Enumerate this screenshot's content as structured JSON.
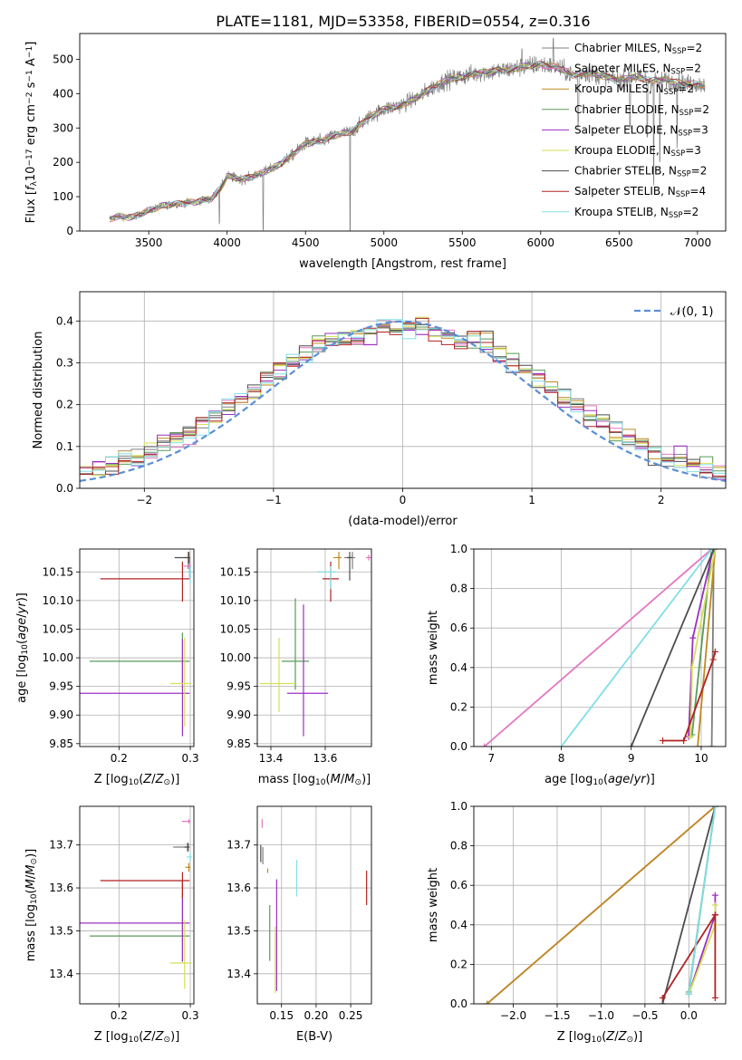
{
  "figure_title": "PLATE=1181, MJD=53358, FIBERID=0554, z=0.316",
  "models": [
    {
      "name": "Chabrier MILES",
      "nssp": "2",
      "color": "#7f7f7f"
    },
    {
      "name": "Salpeter MILES",
      "nssp": "2",
      "color": "#e377c2"
    },
    {
      "name": "Kroupa MILES",
      "nssp": "2",
      "color": "#bd8a1e"
    },
    {
      "name": "Chabrier ELODIE",
      "nssp": "2",
      "color": "#5a9a5a"
    },
    {
      "name": "Salpeter ELODIE",
      "nssp": "3",
      "color": "#9b30c4"
    },
    {
      "name": "Kroupa ELODIE",
      "nssp": "3",
      "color": "#d4e157"
    },
    {
      "name": "Chabrier STELIB",
      "nssp": "2",
      "color": "#4d4d4d"
    },
    {
      "name": "Salpeter STELIB",
      "nssp": "4",
      "color": "#b22222"
    },
    {
      "name": "Kroupa STELIB",
      "nssp": "2",
      "color": "#80dfe6"
    }
  ],
  "chart_data": [
    {
      "id": "spectrum",
      "type": "line",
      "xlabel": "wavelength [Angstrom, rest frame]",
      "ylabel": "Flux [f_λ10^-17 erg cm^-2 s^-1 A^-1]",
      "xlim": [
        3060,
        7180
      ],
      "ylim": [
        0,
        575
      ],
      "xticks": [
        3500,
        4000,
        4500,
        5000,
        5500,
        6000,
        6500,
        7000
      ],
      "yticks": [
        0,
        100,
        200,
        300,
        400,
        500
      ],
      "grid": false,
      "legend": "upper right",
      "continuum_points": [
        [
          3240,
          0
        ],
        [
          3250,
          35
        ],
        [
          3300,
          42
        ],
        [
          3400,
          40
        ],
        [
          3500,
          60
        ],
        [
          3600,
          75
        ],
        [
          3700,
          80
        ],
        [
          3800,
          85
        ],
        [
          3900,
          95
        ],
        [
          3960,
          125
        ],
        [
          4000,
          160
        ],
        [
          4100,
          150
        ],
        [
          4200,
          165
        ],
        [
          4300,
          185
        ],
        [
          4400,
          215
        ],
        [
          4500,
          255
        ],
        [
          4600,
          262
        ],
        [
          4700,
          280
        ],
        [
          4800,
          290
        ],
        [
          4900,
          330
        ],
        [
          5000,
          355
        ],
        [
          5100,
          365
        ],
        [
          5200,
          385
        ],
        [
          5300,
          415
        ],
        [
          5400,
          440
        ],
        [
          5500,
          450
        ],
        [
          5600,
          460
        ],
        [
          5700,
          465
        ],
        [
          5800,
          470
        ],
        [
          5900,
          480
        ],
        [
          6000,
          485
        ],
        [
          6100,
          478
        ],
        [
          6200,
          455
        ],
        [
          6300,
          460
        ],
        [
          6400,
          450
        ],
        [
          6500,
          440
        ],
        [
          6600,
          450
        ],
        [
          6700,
          438
        ],
        [
          6800,
          440
        ],
        [
          6900,
          430
        ],
        [
          7000,
          428
        ],
        [
          7050,
          425
        ]
      ]
    },
    {
      "id": "residuals",
      "type": "line",
      "xlabel": "(data-model)/error",
      "ylabel": "Normed distribution",
      "xlim": [
        -2.5,
        2.5
      ],
      "ylim": [
        0,
        0.47
      ],
      "xticks": [
        -2,
        -1,
        0,
        1,
        2
      ],
      "yticks": [
        0.0,
        0.1,
        0.2,
        0.3,
        0.4
      ],
      "grid": true,
      "legend": "upper right",
      "reference_label": "𝒩(0, 1)",
      "reference_color": "#5b8fd6"
    },
    {
      "id": "age_vs_Z",
      "type": "scatter",
      "xlabel": "Z [log10(Z/Z⊙)]",
      "ylabel": "age [log10(age/yr)]",
      "xlim": [
        0.145,
        0.305
      ],
      "ylim": [
        9.845,
        10.19
      ],
      "xticks": [
        0.2,
        0.3
      ],
      "yticks": [
        9.85,
        9.9,
        9.95,
        10.0,
        10.05,
        10.1,
        10.15
      ],
      "grid": true,
      "points": [
        {
          "model": 0,
          "x": 0.297,
          "y": 10.175,
          "xerr": [
            0.005,
            0.002
          ],
          "yerr": [
            0.02,
            0.01
          ]
        },
        {
          "model": 1,
          "x": 0.299,
          "y": 10.16,
          "xerr": [
            0.008,
            0.002
          ],
          "yerr": [
            0.02,
            0.015
          ]
        },
        {
          "model": 2,
          "x": 0.298,
          "y": 10.175,
          "xerr": [
            0.005,
            0.002
          ],
          "yerr": [
            0.01,
            0.01
          ]
        },
        {
          "model": 3,
          "x": 0.289,
          "y": 9.994,
          "xerr": [
            0.13,
            0.01
          ],
          "yerr": [
            0.04,
            0.05
          ]
        },
        {
          "model": 4,
          "x": 0.289,
          "y": 9.938,
          "xerr": [
            0.15,
            0.01
          ],
          "yerr": [
            0.075,
            0.095
          ]
        },
        {
          "model": 5,
          "x": 0.292,
          "y": 9.955,
          "xerr": [
            0.02,
            0.01
          ],
          "yerr": [
            0.075,
            0.08
          ]
        },
        {
          "model": 6,
          "x": 0.298,
          "y": 10.175,
          "xerr": [
            0.02,
            0.002
          ],
          "yerr": [
            0.01,
            0.01
          ]
        },
        {
          "model": 7,
          "x": 0.289,
          "y": 10.138,
          "xerr": [
            0.115,
            0.01
          ],
          "yerr": [
            0.04,
            0.03
          ]
        },
        {
          "model": 8,
          "x": 0.3,
          "y": 10.15,
          "xerr": [
            0.005,
            0.002
          ],
          "yerr": [
            0.02,
            0.01
          ]
        }
      ]
    },
    {
      "id": "age_vs_mass",
      "type": "scatter",
      "xlabel": "mass [log10(M/M⊙)]",
      "ylabel": "",
      "xlim": [
        13.35,
        13.77
      ],
      "ylim": [
        9.845,
        10.19
      ],
      "xticks": [
        13.4,
        13.6
      ],
      "yticks": [
        9.85,
        9.9,
        9.95,
        10.0,
        10.05,
        10.1,
        10.15
      ],
      "grid": true,
      "points": [
        {
          "model": 0,
          "x": 13.7,
          "y": 10.175,
          "xerr": [
            0.03,
            0.01
          ],
          "yerr": [
            0.02,
            0.01
          ]
        },
        {
          "model": 1,
          "x": 13.76,
          "y": 10.175,
          "xerr": [
            0.01,
            0.01
          ],
          "yerr": [
            0.005,
            0.005
          ]
        },
        {
          "model": 2,
          "x": 13.65,
          "y": 10.175,
          "xerr": [
            0.02,
            0.01
          ],
          "yerr": [
            0.02,
            0.01
          ]
        },
        {
          "model": 3,
          "x": 13.49,
          "y": 9.994,
          "xerr": [
            0.05,
            0.05
          ],
          "yerr": [
            0.05,
            0.11
          ]
        },
        {
          "model": 4,
          "x": 13.52,
          "y": 9.938,
          "xerr": [
            0.06,
            0.09
          ],
          "yerr": [
            0.075,
            0.155
          ]
        },
        {
          "model": 5,
          "x": 13.43,
          "y": 9.955,
          "xerr": [
            0.07,
            0.06
          ],
          "yerr": [
            0.05,
            0.08
          ]
        },
        {
          "model": 6,
          "x": 13.69,
          "y": 10.175,
          "xerr": [
            0.01,
            0.01
          ],
          "yerr": [
            0.04,
            0.01
          ]
        },
        {
          "model": 7,
          "x": 13.62,
          "y": 10.138,
          "xerr": [
            0.03,
            0.03
          ],
          "yerr": [
            0.04,
            0.03
          ]
        },
        {
          "model": 8,
          "x": 13.62,
          "y": 10.15,
          "xerr": [
            0.05,
            0.02
          ],
          "yerr": [
            0.03,
            0.01
          ]
        }
      ]
    },
    {
      "id": "weight_vs_age",
      "type": "line",
      "xlabel": "age [log10(age/yr)]",
      "ylabel": "mass weight",
      "xlim": [
        6.75,
        10.35
      ],
      "ylim": [
        0,
        1
      ],
      "xticks": [
        7,
        8,
        9,
        10
      ],
      "yticks": [
        0.0,
        0.2,
        0.4,
        0.6,
        0.8,
        1.0
      ],
      "grid": true,
      "series": [
        {
          "model": 0,
          "x": [
            10.15,
            10.18
          ],
          "y": [
            0.0,
            1.0
          ]
        },
        {
          "model": 1,
          "x": [
            6.9,
            10.15
          ],
          "y": [
            0.0,
            1.0
          ]
        },
        {
          "model": 2,
          "x": [
            9.95,
            10.2
          ],
          "y": [
            0.0,
            1.0
          ]
        },
        {
          "model": 3,
          "x": [
            9.87,
            10.15
          ],
          "y": [
            0.06,
            1.0
          ]
        },
        {
          "model": 4,
          "x": [
            9.82,
            9.88,
            10.17
          ],
          "y": [
            0.05,
            0.55,
            1.0
          ]
        },
        {
          "model": 5,
          "x": [
            9.85,
            9.87,
            10.2
          ],
          "y": [
            0.05,
            0.4,
            1.0
          ]
        },
        {
          "model": 6,
          "x": [
            9.0,
            10.18
          ],
          "y": [
            0.0,
            1.0
          ]
        },
        {
          "model": 7,
          "x": [
            9.45,
            9.75,
            10.17,
            10.2
          ],
          "y": [
            0.03,
            0.03,
            0.44,
            0.48
          ]
        },
        {
          "model": 8,
          "x": [
            8.0,
            10.15
          ],
          "y": [
            0.0,
            1.0
          ]
        }
      ]
    },
    {
      "id": "mass_vs_Z",
      "type": "scatter",
      "xlabel": "Z [log10(Z/Z⊙)]",
      "ylabel": "mass [log10(M/M⊙)]",
      "xlim": [
        0.145,
        0.305
      ],
      "ylim": [
        13.33,
        13.79
      ],
      "xticks": [
        0.2,
        0.3
      ],
      "yticks": [
        13.4,
        13.5,
        13.6,
        13.7
      ],
      "grid": true,
      "points": [
        {
          "model": 0,
          "x": 0.296,
          "y": 13.695,
          "xerr": [
            0.02,
            0.002
          ],
          "yerr": [
            0.01,
            0.01
          ]
        },
        {
          "model": 1,
          "x": 0.298,
          "y": 13.755,
          "xerr": [
            0.01,
            0.002
          ],
          "yerr": [
            0.005,
            0.005
          ]
        },
        {
          "model": 2,
          "x": 0.298,
          "y": 13.648,
          "xerr": [
            0.005,
            0.002
          ],
          "yerr": [
            0.01,
            0.01
          ]
        },
        {
          "model": 3,
          "x": 0.289,
          "y": 13.488,
          "xerr": [
            0.13,
            0.01
          ],
          "yerr": [
            0.06,
            0.1
          ]
        },
        {
          "model": 4,
          "x": 0.289,
          "y": 13.518,
          "xerr": [
            0.15,
            0.01
          ],
          "yerr": [
            0.09,
            0.1
          ]
        },
        {
          "model": 5,
          "x": 0.292,
          "y": 13.425,
          "xerr": [
            0.02,
            0.01
          ],
          "yerr": [
            0.06,
            0.1
          ]
        },
        {
          "model": 6,
          "x": 0.297,
          "y": 13.695,
          "xerr": [
            0.005,
            0.002
          ],
          "yerr": [
            0.01,
            0.01
          ]
        },
        {
          "model": 7,
          "x": 0.289,
          "y": 13.617,
          "xerr": [
            0.115,
            0.01
          ],
          "yerr": [
            0.04,
            0.02
          ]
        },
        {
          "model": 8,
          "x": 0.3,
          "y": 13.672,
          "xerr": [
            0.005,
            0.002
          ],
          "yerr": [
            0.01,
            0.01
          ]
        }
      ]
    },
    {
      "id": "mass_vs_EBV",
      "type": "scatter",
      "xlabel": "E(B-V)",
      "ylabel": "",
      "xlim": [
        0.115,
        0.28
      ],
      "ylim": [
        13.33,
        13.79
      ],
      "xticks": [
        0.15,
        0.2,
        0.25
      ],
      "yticks": [
        13.4,
        13.5,
        13.6,
        13.7
      ],
      "grid": true,
      "points": [
        {
          "model": 0,
          "x": 0.123,
          "y": 13.675,
          "xerr": [
            0.0,
            0.0
          ],
          "yerr": [
            0.02,
            0.02
          ]
        },
        {
          "model": 1,
          "x": 0.122,
          "y": 13.75,
          "xerr": [
            0.0,
            0.0
          ],
          "yerr": [
            0.01,
            0.01
          ]
        },
        {
          "model": 2,
          "x": 0.13,
          "y": 13.64,
          "xerr": [
            0.0,
            0.0
          ],
          "yerr": [
            0.005,
            0.005
          ]
        },
        {
          "model": 3,
          "x": 0.133,
          "y": 13.49,
          "xerr": [
            0.0,
            0.0
          ],
          "yerr": [
            0.06,
            0.07
          ]
        },
        {
          "model": 4,
          "x": 0.143,
          "y": 13.52,
          "xerr": [
            0.0,
            0.0
          ],
          "yerr": [
            0.16,
            0.1
          ]
        },
        {
          "model": 5,
          "x": 0.141,
          "y": 13.425,
          "xerr": [
            0.0,
            0.0
          ],
          "yerr": [
            0.07,
            0.085
          ]
        },
        {
          "model": 6,
          "x": 0.12,
          "y": 13.695,
          "xerr": [
            0.0,
            0.0
          ],
          "yerr": [
            0.035,
            0.005
          ]
        },
        {
          "model": 7,
          "x": 0.273,
          "y": 13.6,
          "xerr": [
            0.0,
            0.0
          ],
          "yerr": [
            0.04,
            0.04
          ]
        },
        {
          "model": 8,
          "x": 0.172,
          "y": 13.62,
          "xerr": [
            0.0,
            0.0
          ],
          "yerr": [
            0.04,
            0.045
          ]
        }
      ]
    },
    {
      "id": "weight_vs_Z",
      "type": "line",
      "xlabel": "Z [log10(Z/Z⊙)]",
      "ylabel": "mass weight",
      "xlim": [
        -2.45,
        0.42
      ],
      "ylim": [
        0,
        1
      ],
      "xticks": [
        -2.0,
        -1.5,
        -1.0,
        -0.5,
        0.0
      ],
      "yticks": [
        0.0,
        0.2,
        0.4,
        0.6,
        0.8,
        1.0
      ],
      "grid": true,
      "series": [
        {
          "model": 0,
          "x": [
            0.0,
            0.3
          ],
          "y": [
            0.05,
            1.0
          ]
        },
        {
          "model": 1,
          "x": [
            -2.3,
            0.3
          ],
          "y": [
            0.0,
            1.0
          ]
        },
        {
          "model": 2,
          "x": [
            -2.3,
            0.3
          ],
          "y": [
            0.0,
            1.0
          ]
        },
        {
          "model": 3,
          "x": [
            0.0,
            0.3
          ],
          "y": [
            0.06,
            1.0
          ]
        },
        {
          "model": 4,
          "x": [
            0.0,
            0.3,
            0.3
          ],
          "y": [
            0.05,
            0.45,
            0.55
          ]
        },
        {
          "model": 5,
          "x": [
            0.0,
            0.3,
            0.3
          ],
          "y": [
            0.05,
            0.4,
            0.5
          ]
        },
        {
          "model": 6,
          "x": [
            -0.3,
            0.3
          ],
          "y": [
            0.0,
            1.0
          ]
        },
        {
          "model": 7,
          "x": [
            -0.3,
            0.3,
            0.3,
            0.3
          ],
          "y": [
            0.03,
            0.45,
            0.03,
            0.45
          ]
        },
        {
          "model": 8,
          "x": [
            0.0,
            0.3
          ],
          "y": [
            0.05,
            1.0
          ]
        }
      ]
    }
  ]
}
